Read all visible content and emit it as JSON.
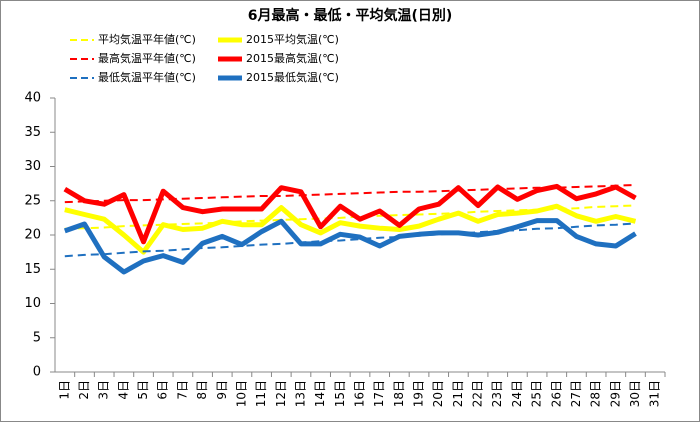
{
  "chart_data": {
    "type": "line",
    "title": "6月最高・最低・平均気温(日別)",
    "categories": [
      "1日",
      "2日",
      "3日",
      "4日",
      "5日",
      "6日",
      "7日",
      "8日",
      "9日",
      "10日",
      "11日",
      "12日",
      "13日",
      "14日",
      "15日",
      "16日",
      "17日",
      "18日",
      "19日",
      "20日",
      "21日",
      "22日",
      "23日",
      "24日",
      "25日",
      "26日",
      "27日",
      "28日",
      "29日",
      "30日",
      "31日"
    ],
    "series": [
      {
        "name": "平均気温平年値(℃)",
        "color": "#ffff00",
        "dashed": true,
        "values": [
          20.9,
          21.0,
          21.1,
          21.3,
          21.4,
          21.5,
          21.6,
          21.7,
          21.8,
          22.0,
          22.1,
          22.2,
          22.3,
          22.4,
          22.5,
          22.7,
          22.8,
          22.9,
          23.0,
          23.1,
          23.2,
          23.4,
          23.5,
          23.6,
          23.7,
          23.8,
          23.9,
          24.1,
          24.2,
          24.3,
          null
        ]
      },
      {
        "name": "2015平均気温(℃)",
        "color": "#ffff00",
        "dashed": false,
        "values": [
          23.7,
          23.0,
          22.3,
          20.0,
          17.5,
          21.5,
          20.8,
          21.0,
          22.0,
          21.5,
          21.5,
          24.0,
          21.5,
          20.3,
          21.8,
          21.3,
          21.0,
          20.8,
          21.3,
          22.3,
          23.2,
          22.0,
          23.0,
          23.2,
          23.5,
          24.2,
          22.8,
          22.0,
          22.7,
          22.0,
          null
        ]
      },
      {
        "name": "最高気温平年値(℃)",
        "color": "#ff0000",
        "dashed": true,
        "values": [
          24.8,
          24.9,
          25.0,
          25.1,
          25.1,
          25.2,
          25.3,
          25.4,
          25.5,
          25.6,
          25.7,
          25.7,
          25.8,
          25.9,
          26.0,
          26.1,
          26.2,
          26.3,
          26.3,
          26.4,
          26.5,
          26.6,
          26.7,
          26.8,
          26.9,
          26.9,
          27.0,
          27.1,
          27.2,
          27.3,
          null
        ]
      },
      {
        "name": "2015最高気温(℃)",
        "color": "#ff0000",
        "dashed": false,
        "values": [
          26.7,
          25.0,
          24.5,
          25.9,
          19.0,
          26.4,
          24.0,
          23.4,
          23.8,
          23.8,
          23.8,
          26.9,
          26.3,
          21.2,
          24.2,
          22.3,
          23.5,
          21.4,
          23.8,
          24.5,
          26.9,
          24.3,
          27.0,
          25.2,
          26.5,
          27.1,
          25.3,
          26.0,
          27.0,
          25.4,
          null
        ]
      },
      {
        "name": "最低気温平年値(℃)",
        "color": "#1f70c0",
        "dashed": true,
        "values": [
          16.9,
          17.1,
          17.2,
          17.4,
          17.6,
          17.7,
          17.9,
          18.1,
          18.2,
          18.4,
          18.6,
          18.7,
          18.9,
          19.1,
          19.2,
          19.4,
          19.6,
          19.7,
          19.9,
          20.1,
          20.2,
          20.4,
          20.6,
          20.7,
          20.9,
          21.0,
          21.2,
          21.4,
          21.5,
          21.7,
          null
        ]
      },
      {
        "name": "2015最低気温(℃)",
        "color": "#1f70c0",
        "dashed": false,
        "values": [
          20.6,
          21.6,
          16.8,
          14.6,
          16.2,
          17.0,
          16.0,
          18.8,
          19.8,
          18.6,
          20.5,
          22.0,
          18.7,
          18.7,
          20.1,
          19.7,
          18.4,
          19.8,
          20.1,
          20.3,
          20.3,
          20.0,
          20.4,
          21.2,
          22.1,
          22.1,
          19.8,
          18.7,
          18.4,
          20.2,
          null
        ]
      }
    ],
    "ylim": [
      0,
      40
    ],
    "yticks": [
      0,
      5,
      10,
      15,
      20,
      25,
      30,
      35,
      40
    ],
    "grid": false
  }
}
